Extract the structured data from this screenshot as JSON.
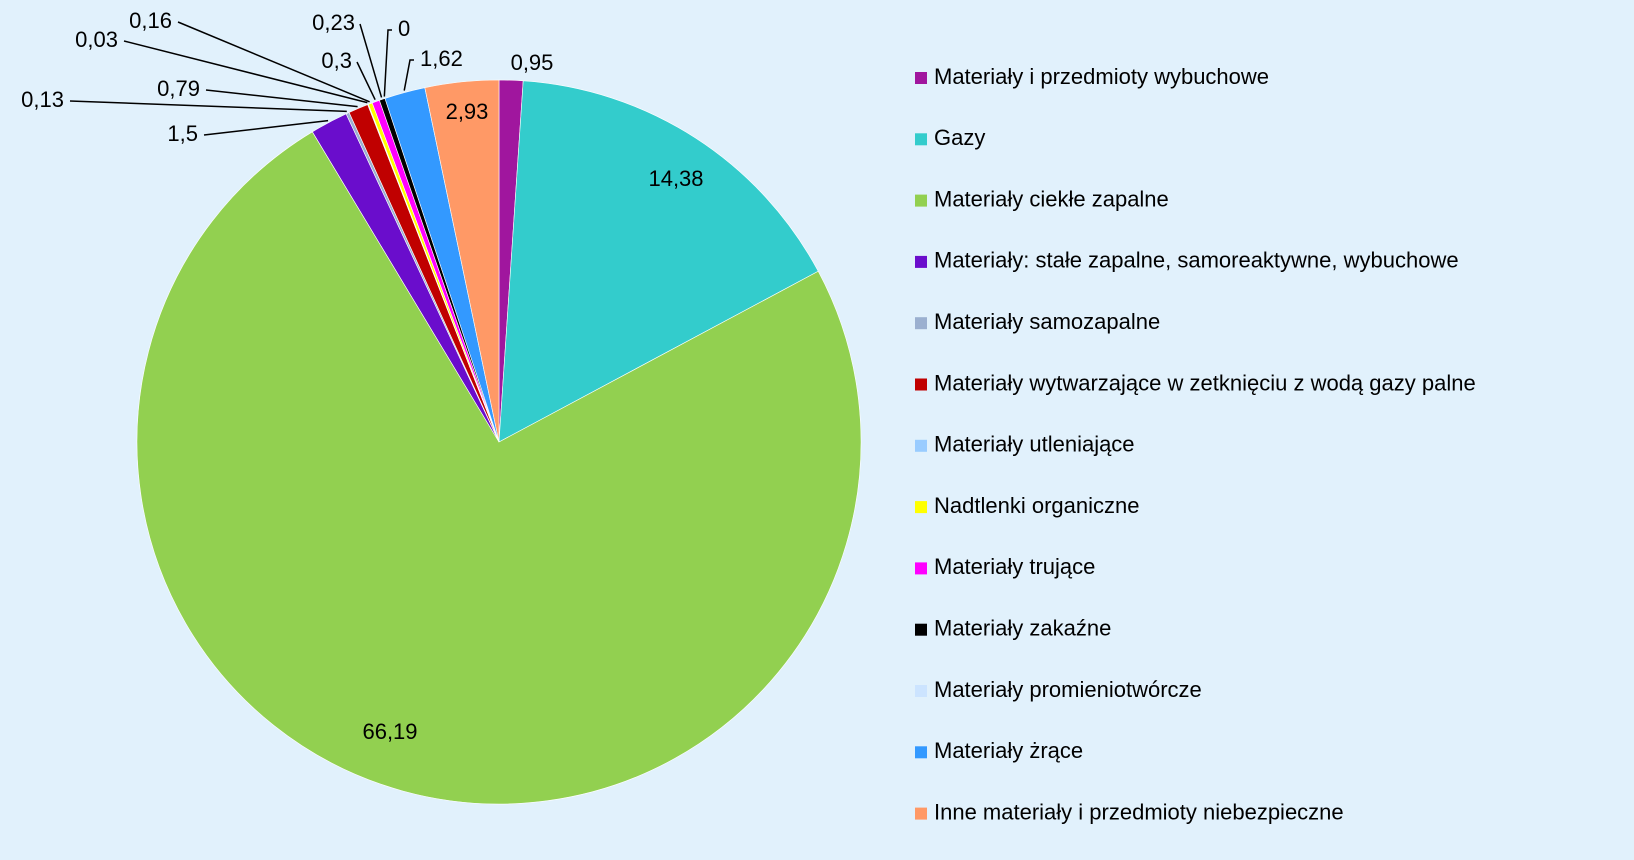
{
  "chart_data": {
    "type": "pie",
    "categories": [
      "Materiały i przedmioty wybuchowe",
      "Gazy",
      "Materiały ciekłe zapalne",
      "Materiały: stałe zapalne, samoreaktywne, wybuchowe",
      "Materiały samozapalne",
      "Materiały wytwarzające w zetknięciu z wodą gazy palne",
      "Materiały utleniające",
      "Nadtlenki organiczne",
      "Materiały trujące",
      "Materiały zakaźne",
      "Materiały promieniotwórcze",
      "Materiały żrące",
      "Inne materiały i przedmioty niebezpieczne"
    ],
    "values": [
      0.95,
      14.38,
      66.19,
      1.5,
      0.13,
      0.79,
      0.03,
      0.16,
      0.3,
      0.23,
      0,
      1.62,
      2.93
    ],
    "value_labels": [
      "0,95",
      "14,38",
      "66,19",
      "1,5",
      "0,13",
      "0,79",
      "0,03",
      "0,16",
      "0,3",
      "0,23",
      "0",
      "1,62",
      "2,93"
    ],
    "colors": [
      "#a0169e",
      "#33cccc",
      "#92d050",
      "#6a0dcc",
      "#9bb0d0",
      "#c00000",
      "#99ccff",
      "#ffff00",
      "#ff00ff",
      "#000000",
      "#cce4ff",
      "#3399ff",
      "#ff9966"
    ],
    "legend": "right"
  }
}
